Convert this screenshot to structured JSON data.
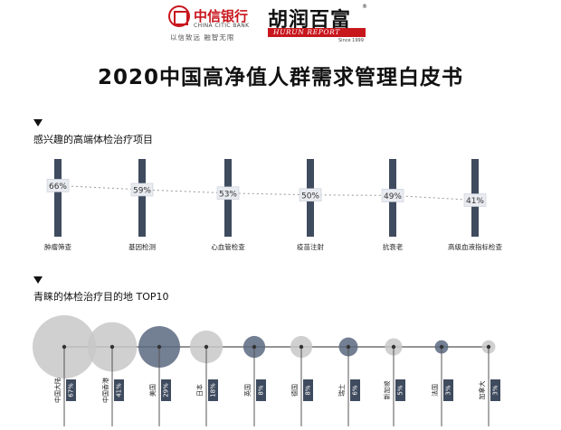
{
  "logos": {
    "citic": {
      "name": "中信银行",
      "english": "CHINA CITIC BANK",
      "slogan": "以信致远 融智无限"
    },
    "hurun": {
      "name": "胡润百富",
      "english": "HURUN REPORT",
      "since": "Since 1999",
      "registered": "®"
    }
  },
  "title": "2020中国高净值人群需求管理白皮书",
  "colors": {
    "bar": "#3f4b5e",
    "bubble_dark": "#5a6880",
    "bubble_light": "#c8c8c8",
    "brand_red": "#c8161d"
  },
  "chart_data": [
    {
      "type": "bar",
      "title": "感兴趣的高端体检治疗项目",
      "categories": [
        "肿瘤筛查",
        "基因检测",
        "心血管检查",
        "疫苗注射",
        "抗衰老",
        "高级血液指标检查"
      ],
      "values": [
        66,
        59,
        53,
        50,
        49,
        41
      ],
      "value_labels": [
        "66%",
        "59%",
        "53%",
        "50%",
        "49%",
        "41%"
      ],
      "trend_line": "dotted",
      "ylim": [
        0,
        100
      ]
    },
    {
      "type": "scatter",
      "title": "青睐的体检治疗目的地 TOP10",
      "categories": [
        "中国大陆",
        "中国香港",
        "美国",
        "日本",
        "英国",
        "德国",
        "瑞士",
        "新加坡",
        "法国",
        "加拿大"
      ],
      "values": [
        67,
        41,
        29,
        18,
        8,
        8,
        6,
        5,
        3,
        3
      ],
      "value_labels": [
        "67%",
        "41%",
        "29%",
        "18%",
        "8%",
        "8%",
        "6%",
        "5%",
        "3%",
        "3%"
      ],
      "bubble_tone": [
        "light",
        "light",
        "dark",
        "light",
        "dark",
        "light",
        "dark",
        "light",
        "dark",
        "light"
      ]
    }
  ]
}
